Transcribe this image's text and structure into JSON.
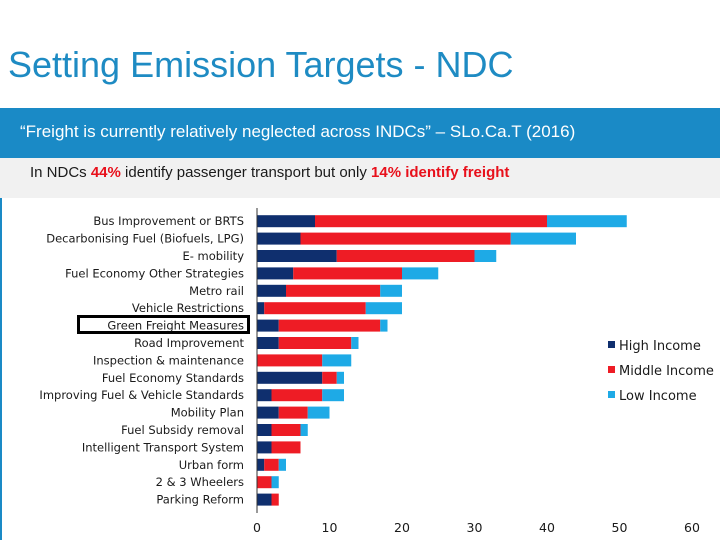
{
  "slide": {
    "title": "Setting Emission Targets - NDC",
    "quote": "“Freight is currently relatively neglected across INDCs” – SLo.Ca.T (2016)",
    "subtitle": {
      "part1": "In NDCs ",
      "pct1": "44%",
      "part2": " identify passenger transport but only ",
      "pct2": "14% identify freight"
    }
  },
  "colors": {
    "accent": "#1a8ac6",
    "highlight_text": "#e8101b",
    "High Income": "#0f2f6e",
    "Middle Income": "#ee1c25",
    "Low Income": "#1eaae6"
  },
  "chart_data": {
    "type": "bar",
    "orientation": "horizontal",
    "stacked": true,
    "categories": [
      "Bus Improvement or BRTS",
      "Decarbonising Fuel (Biofuels, LPG)",
      "E- mobility",
      "Fuel Economy Other Strategies",
      "Metro rail",
      "Vehicle Restrictions",
      "Green Freight Measures",
      "Road Improvement",
      "Inspection & maintenance",
      "Fuel Economy Standards",
      "Improving Fuel & Vehicle Standards",
      "Mobility Plan",
      "Fuel Subsidy removal",
      "Intelligent Transport System",
      "Urban form",
      "2 & 3 Wheelers",
      "Parking Reform"
    ],
    "series": [
      {
        "name": "High Income",
        "values": [
          8,
          6,
          11,
          5,
          4,
          1,
          3,
          3,
          0,
          9,
          2,
          3,
          2,
          2,
          1,
          0,
          2
        ]
      },
      {
        "name": "Middle Income",
        "values": [
          32,
          29,
          19,
          15,
          13,
          14,
          14,
          10,
          9,
          2,
          7,
          4,
          4,
          4,
          2,
          2,
          1
        ]
      },
      {
        "name": "Low Income",
        "values": [
          11,
          9,
          3,
          5,
          3,
          5,
          1,
          1,
          4,
          1,
          3,
          3,
          1,
          0,
          1,
          1,
          0
        ]
      }
    ],
    "xlim": [
      0,
      60
    ],
    "xticks": [
      0,
      10,
      20,
      30,
      40,
      50,
      60
    ],
    "legend": [
      "High Income",
      "Middle Income",
      "Low Income"
    ],
    "legend_position": "right",
    "highlighted_category": "Green Freight Measures"
  }
}
